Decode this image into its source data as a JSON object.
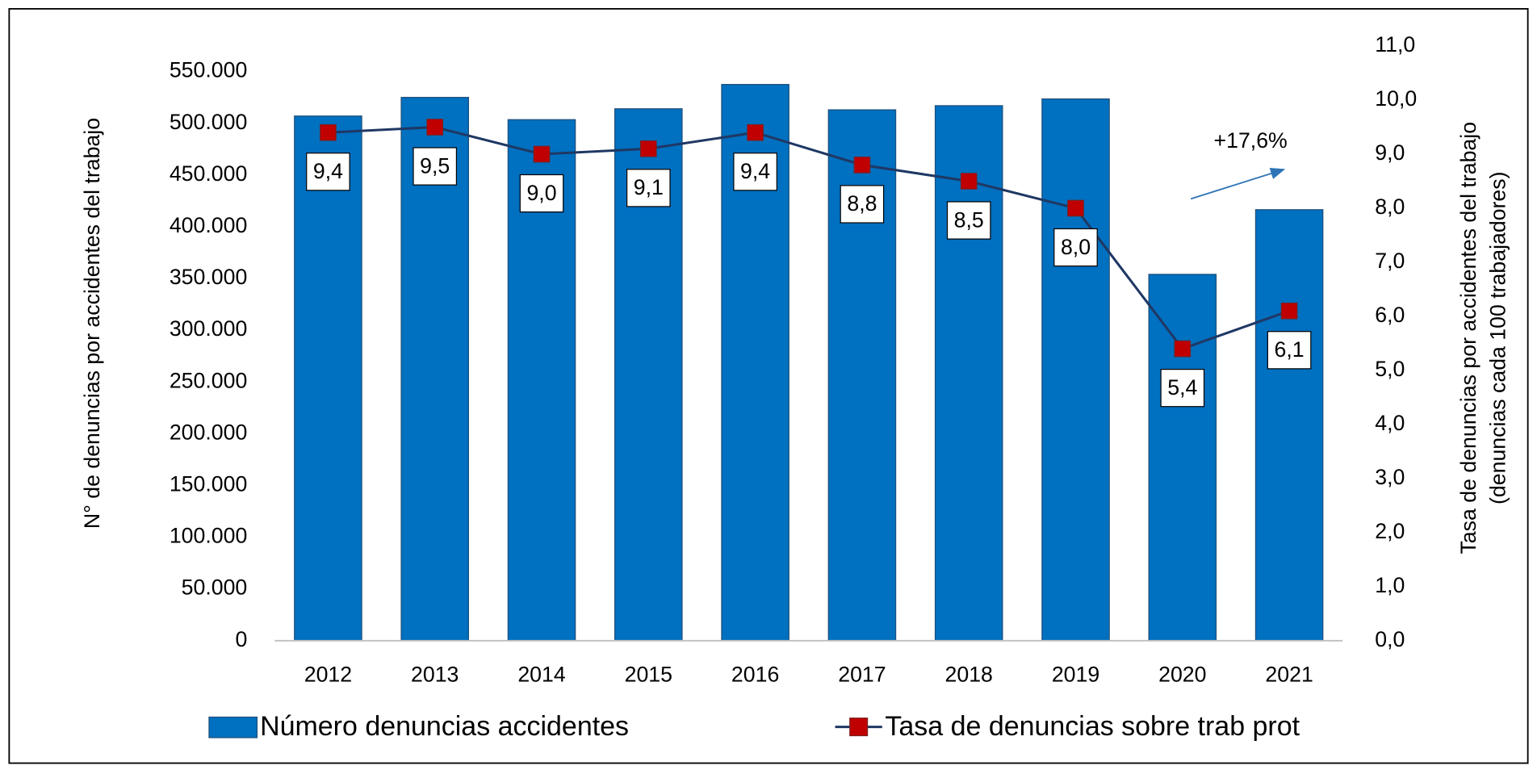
{
  "chart_data": {
    "type": "bar_line",
    "categories": [
      "2012",
      "2013",
      "2014",
      "2015",
      "2016",
      "2017",
      "2018",
      "2019",
      "2020",
      "2021"
    ],
    "y_label": "N° de denuncias por accidentes del trabajo",
    "y2_label": [
      "Tasa de denuncias por accidentes del trabajo",
      "(denuncias  cada 100 trabajadores)"
    ],
    "annotation": "+17,6%",
    "ylim": [
      0,
      550000
    ],
    "yticks": [
      0,
      {
        "value": 50000,
        "label": "50.000"
      },
      {
        "value": 100000,
        "label": "100.000"
      },
      {
        "value": 150000,
        "label": "150.000"
      },
      {
        "value": 200000,
        "label": "200.000"
      },
      {
        "value": 250000,
        "label": "250.000"
      },
      {
        "value": 300000,
        "label": "300.000"
      },
      {
        "value": 350000,
        "label": "350.000"
      },
      {
        "value": 400000,
        "label": "400.000"
      },
      {
        "value": 450000,
        "label": "450.000"
      },
      {
        "value": 500000,
        "label": "500.000"
      },
      {
        "value": 550000,
        "label": "550.000"
      }
    ],
    "y2lim": [
      0,
      11
    ],
    "y2ticks": [
      {
        "value": 0,
        "label": "0,0"
      },
      {
        "value": 1,
        "label": "1,0"
      },
      {
        "value": 2,
        "label": "2,0"
      },
      {
        "value": 3,
        "label": "3,0"
      },
      {
        "value": 4,
        "label": "4,0"
      },
      {
        "value": 5,
        "label": "5,0"
      },
      {
        "value": 6,
        "label": "6,0"
      },
      {
        "value": 7,
        "label": "7,0"
      },
      {
        "value": 8,
        "label": "8,0"
      },
      {
        "value": 9,
        "label": "9,0"
      },
      {
        "value": 10,
        "label": "10,0"
      },
      {
        "value": 11,
        "label": "11,0"
      }
    ],
    "series": [
      {
        "name": "Número denuncias accidentes",
        "type": "bar",
        "color": "#0070c0",
        "values": [
          507000,
          525000,
          503500,
          514000,
          537500,
          513000,
          517000,
          523500,
          354000,
          416500
        ]
      },
      {
        "name": "Tasa de denuncias sobre trab prot",
        "type": "line",
        "axis": "y2",
        "color": "#1f3864",
        "marker_color": "#c00000",
        "values": [
          9.4,
          9.5,
          9.0,
          9.1,
          9.4,
          8.8,
          8.5,
          8.0,
          5.4,
          6.1
        ],
        "value_labels": [
          "9,4",
          "9,5",
          "9,0",
          "9,1",
          "9,4",
          "8,8",
          "8,5",
          "8,0",
          "5,4",
          "6,1"
        ]
      }
    ]
  }
}
